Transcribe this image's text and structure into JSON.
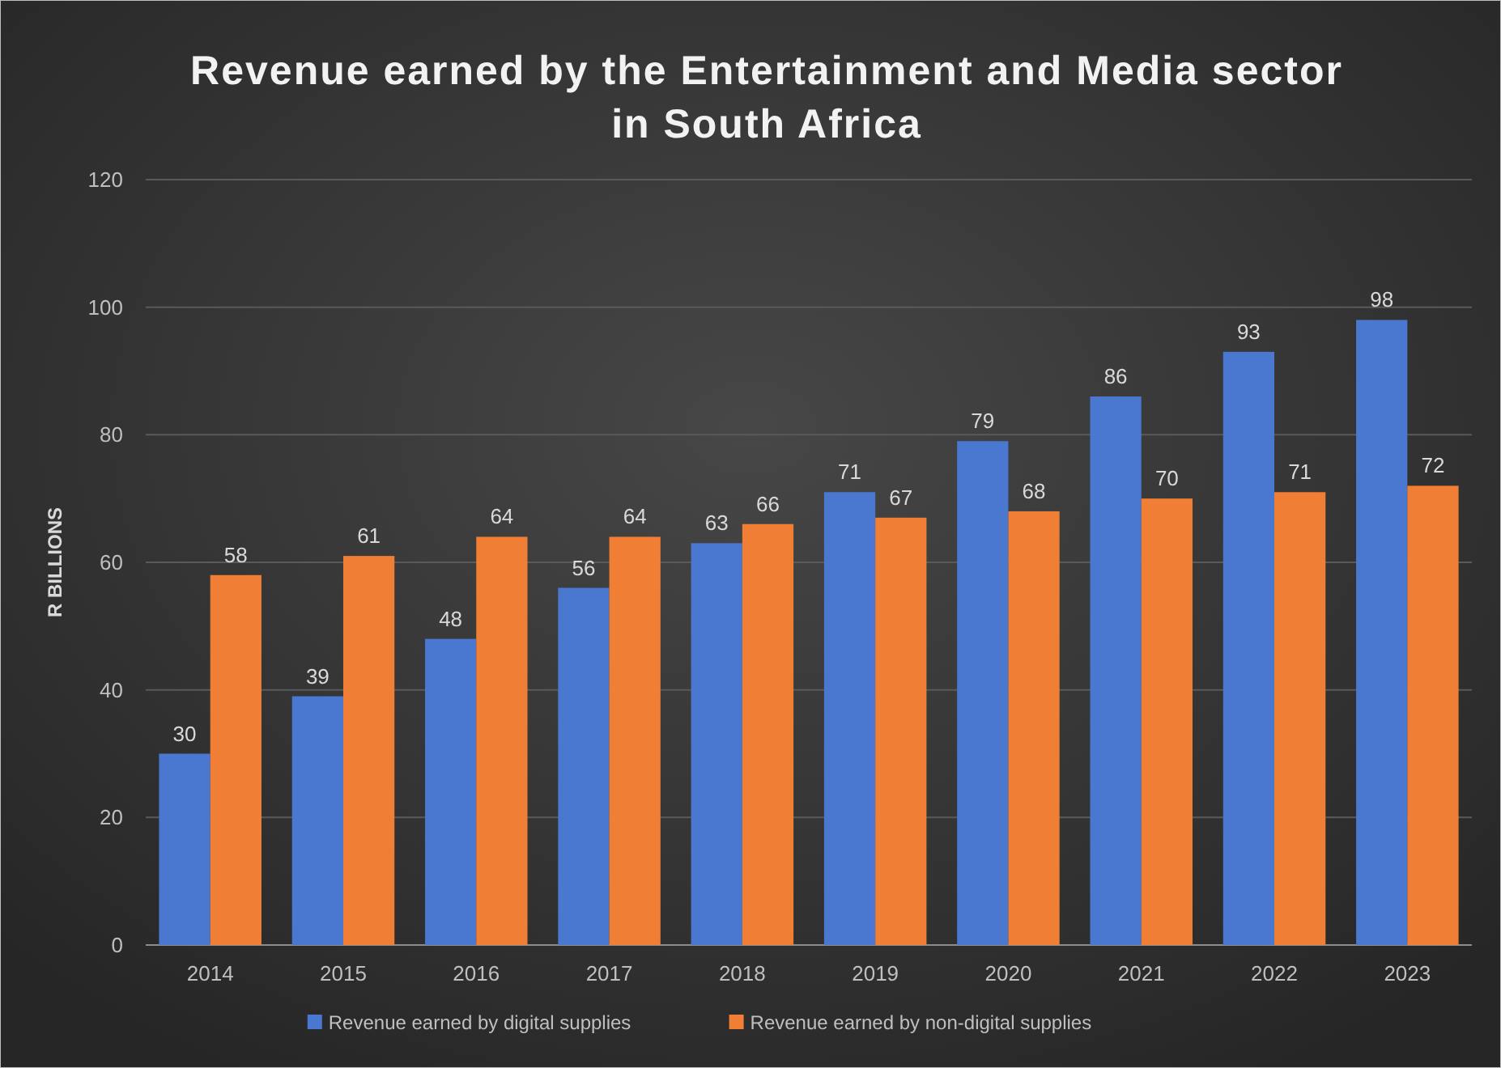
{
  "chart_data": {
    "type": "bar",
    "title": "Revenue earned by the Entertainment and Media sector in South Africa",
    "ylabel": "R BILLIONS",
    "categories": [
      "2014",
      "2015",
      "2016",
      "2017",
      "2018",
      "2019",
      "2020",
      "2021",
      "2022",
      "2023"
    ],
    "series": [
      {
        "name": "Revenue earned by digital supplies",
        "color": "#4a78d0",
        "values": [
          30,
          39,
          48,
          56,
          63,
          71,
          79,
          86,
          93,
          98
        ]
      },
      {
        "name": "Revenue earned by non-digital supplies",
        "color": "#f07f35",
        "values": [
          58,
          61,
          64,
          64,
          66,
          67,
          68,
          70,
          71,
          72
        ]
      }
    ],
    "ylim": [
      0,
      120
    ],
    "yticks": [
      0,
      20,
      40,
      60,
      80,
      100,
      120
    ],
    "grid": "y",
    "legend": "bottom",
    "data_labels": true
  }
}
